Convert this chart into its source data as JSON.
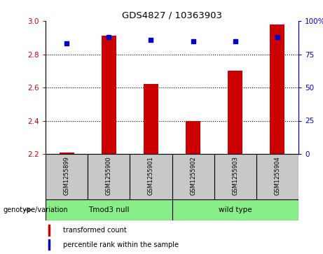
{
  "title": "GDS4827 / 10363903",
  "samples": [
    "GSM1255899",
    "GSM1255900",
    "GSM1255901",
    "GSM1255902",
    "GSM1255903",
    "GSM1255904"
  ],
  "transformed_count": [
    2.21,
    2.91,
    2.62,
    2.4,
    2.7,
    2.98
  ],
  "percentile_rank": [
    83,
    88,
    86,
    85,
    85,
    88
  ],
  "ylim_left": [
    2.2,
    3.0
  ],
  "ylim_right": [
    0,
    100
  ],
  "yticks_left": [
    2.2,
    2.4,
    2.6,
    2.8,
    3.0
  ],
  "yticks_right": [
    0,
    25,
    50,
    75,
    100
  ],
  "ytick_labels_right": [
    "0",
    "25",
    "50",
    "75",
    "100%"
  ],
  "bar_color": "#cc0000",
  "dot_color": "#0000cc",
  "bar_width": 0.35,
  "group_label": "genotype/variation",
  "legend_bar_label": "transformed count",
  "legend_dot_label": "percentile rank within the sample",
  "background_color": "#ffffff",
  "xticklabel_area_color": "#c8c8c8",
  "group_area_color": "#88ee88",
  "left_tick_color": "#cc0000",
  "right_tick_color": "#0000cc",
  "base_value": 2.2,
  "grid_dotted_at": [
    2.4,
    2.6,
    2.8
  ],
  "group1_label": "Tmod3 null",
  "group2_label": "wild type"
}
